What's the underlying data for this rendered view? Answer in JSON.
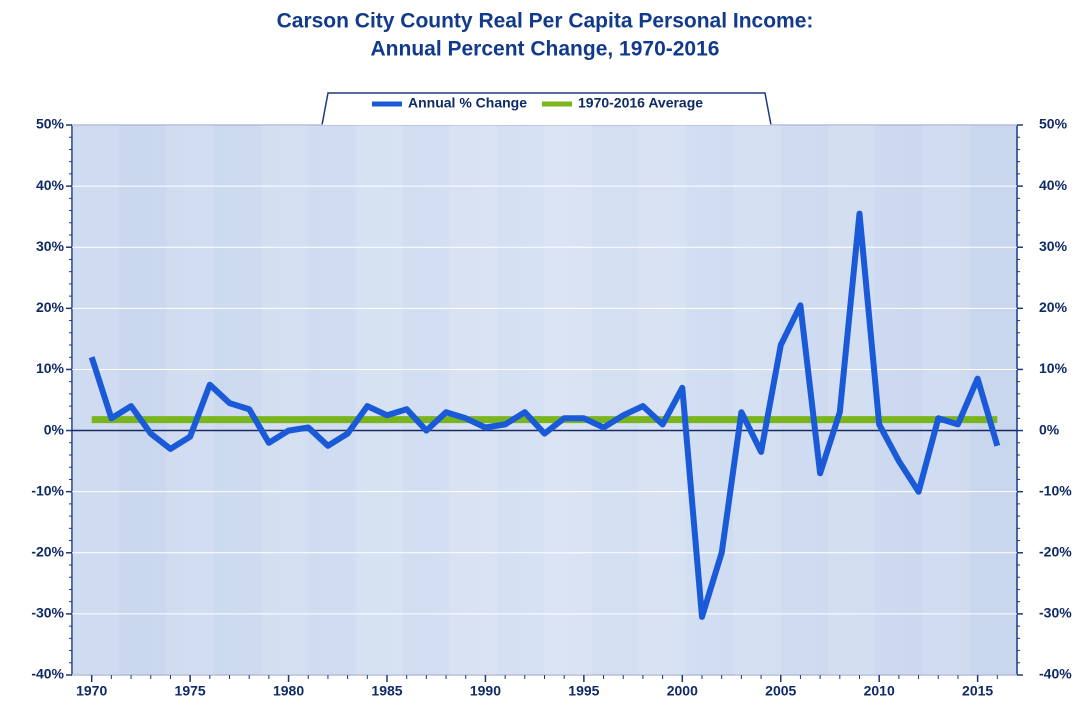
{
  "chart_data": {
    "type": "line",
    "title": "Carson City County Real Per Capita Personal Income:",
    "subtitle": "Annual Percent Change, 1970-2016",
    "x": [
      1970,
      1971,
      1972,
      1973,
      1974,
      1975,
      1976,
      1977,
      1978,
      1979,
      1980,
      1981,
      1982,
      1983,
      1984,
      1985,
      1986,
      1987,
      1988,
      1989,
      1990,
      1991,
      1992,
      1993,
      1994,
      1995,
      1996,
      1997,
      1998,
      1999,
      2000,
      2001,
      2002,
      2003,
      2004,
      2005,
      2006,
      2007,
      2008,
      2009,
      2010,
      2011,
      2012,
      2013,
      2014,
      2015,
      2016
    ],
    "series": [
      {
        "name": "Annual % Change",
        "color": "#1a5ad8",
        "values": [
          12,
          2,
          4,
          -0.5,
          -3,
          -1,
          7.5,
          4.5,
          3.5,
          -2,
          0,
          0.5,
          -2.5,
          -0.5,
          4,
          2.5,
          3.5,
          0,
          3,
          2,
          0.5,
          1,
          3,
          -0.5,
          2,
          2,
          0.5,
          2.5,
          4,
          1,
          7,
          -30.5,
          -20,
          3,
          -3.5,
          14,
          20.5,
          -7,
          3,
          35.5,
          1,
          -5,
          -10,
          2,
          1,
          8.5,
          -2.5
        ]
      },
      {
        "name": "1970-2016 Average",
        "color": "#7ab51d",
        "values": [
          1.8,
          1.8,
          1.8,
          1.8,
          1.8,
          1.8,
          1.8,
          1.8,
          1.8,
          1.8,
          1.8,
          1.8,
          1.8,
          1.8,
          1.8,
          1.8,
          1.8,
          1.8,
          1.8,
          1.8,
          1.8,
          1.8,
          1.8,
          1.8,
          1.8,
          1.8,
          1.8,
          1.8,
          1.8,
          1.8,
          1.8,
          1.8,
          1.8,
          1.8,
          1.8,
          1.8,
          1.8,
          1.8,
          1.8,
          1.8,
          1.8,
          1.8,
          1.8,
          1.8,
          1.8,
          1.8,
          1.8
        ]
      }
    ],
    "xlim": [
      1969,
      2017
    ],
    "xticks": [
      1970,
      1975,
      1980,
      1985,
      1990,
      1995,
      2000,
      2005,
      2010,
      2015
    ],
    "ylim": [
      -40,
      50
    ],
    "yticks": [
      {
        "value": -40,
        "label": "-40%"
      },
      {
        "value": -30,
        "label": "-30%"
      },
      {
        "value": -20,
        "label": "-20%"
      },
      {
        "value": -10,
        "label": "-10%"
      },
      {
        "value": 0,
        "label": "0%"
      },
      {
        "value": 10,
        "label": "10%"
      },
      {
        "value": 20,
        "label": "20%"
      },
      {
        "value": 30,
        "label": "30%"
      },
      {
        "value": 40,
        "label": "40%"
      },
      {
        "value": 50,
        "label": "50%"
      }
    ],
    "y2lim": [
      -40,
      50
    ],
    "y2ticks": [
      {
        "value": -40,
        "label": "-40%"
      },
      {
        "value": -30,
        "label": "-30%"
      },
      {
        "value": -20,
        "label": "-20%"
      },
      {
        "value": -10,
        "label": "-10%"
      },
      {
        "value": 0,
        "label": "0%"
      },
      {
        "value": 10,
        "label": "10%"
      },
      {
        "value": 20,
        "label": "20%"
      },
      {
        "value": 30,
        "label": "30%"
      },
      {
        "value": 40,
        "label": "40%"
      },
      {
        "value": 50,
        "label": "50%"
      }
    ],
    "grid": true,
    "legend": "top"
  }
}
